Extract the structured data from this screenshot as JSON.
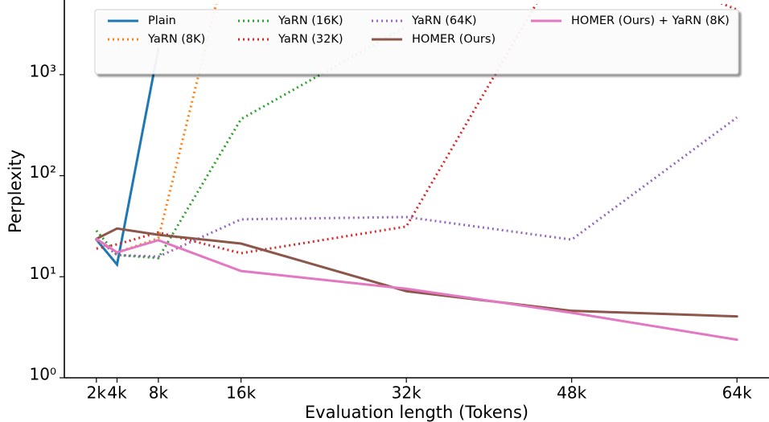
{
  "chart_data": {
    "type": "line",
    "x_label": "Evaluation length (Tokens)",
    "y_label": "Perplexity",
    "x": [
      2,
      4,
      8,
      16,
      32,
      48,
      64
    ],
    "xlim": [
      -1.1,
      67.1
    ],
    "xticks": [
      {
        "value": 2,
        "label": "2k"
      },
      {
        "value": 4,
        "label": "4k"
      },
      {
        "value": 8,
        "label": "8k"
      },
      {
        "value": 16,
        "label": "16k"
      },
      {
        "value": 32,
        "label": "32k"
      },
      {
        "value": 48,
        "label": "48k"
      },
      {
        "value": 64,
        "label": "64k"
      }
    ],
    "ylim": [
      1,
      5000
    ],
    "yscale": "log",
    "yticks": [
      {
        "value": 1,
        "label": "10⁰"
      },
      {
        "value": 10,
        "label": "10¹"
      },
      {
        "value": 100,
        "label": "10²"
      },
      {
        "value": 1000,
        "label": "10³"
      }
    ],
    "legend_position": "top",
    "legend_columns": 4,
    "series": [
      {
        "name": "Plain",
        "color": "#1f77b4",
        "linestyle": "solid",
        "values": [
          23.3,
          13.2,
          1800,
          null,
          null,
          null,
          null
        ]
      },
      {
        "name": "YaRN (8K)",
        "color": "#ff7f0e",
        "linestyle": "dotted",
        "values": [
          23,
          17.4,
          24,
          50000,
          null,
          null,
          null
        ]
      },
      {
        "name": "YaRN (16K)",
        "color": "#2ca02c",
        "linestyle": "dotted",
        "values": [
          28.6,
          16.4,
          15.3,
          363,
          3000,
          null,
          null
        ]
      },
      {
        "name": "YaRN (32K)",
        "color": "#d62728",
        "linestyle": "dotted",
        "values": [
          19,
          20.9,
          27.5,
          17.1,
          31.4,
          20000,
          4400
        ]
      },
      {
        "name": "YaRN (64K)",
        "color": "#9467bd",
        "linestyle": "dotted",
        "values": [
          23.7,
          16.4,
          15.8,
          37,
          39,
          23.3,
          377
        ]
      },
      {
        "name": "HOMER (Ours)",
        "color": "#8c564b",
        "linestyle": "solid",
        "values": [
          23.7,
          30,
          26,
          21.3,
          7.2,
          4.6,
          4.05
        ]
      },
      {
        "name": "HOMER (Ours) + YaRN (8K)",
        "color": "#e377c2",
        "linestyle": "solid",
        "values": [
          23.7,
          17.4,
          23,
          11.4,
          7.6,
          4.4,
          2.38
        ]
      }
    ]
  }
}
